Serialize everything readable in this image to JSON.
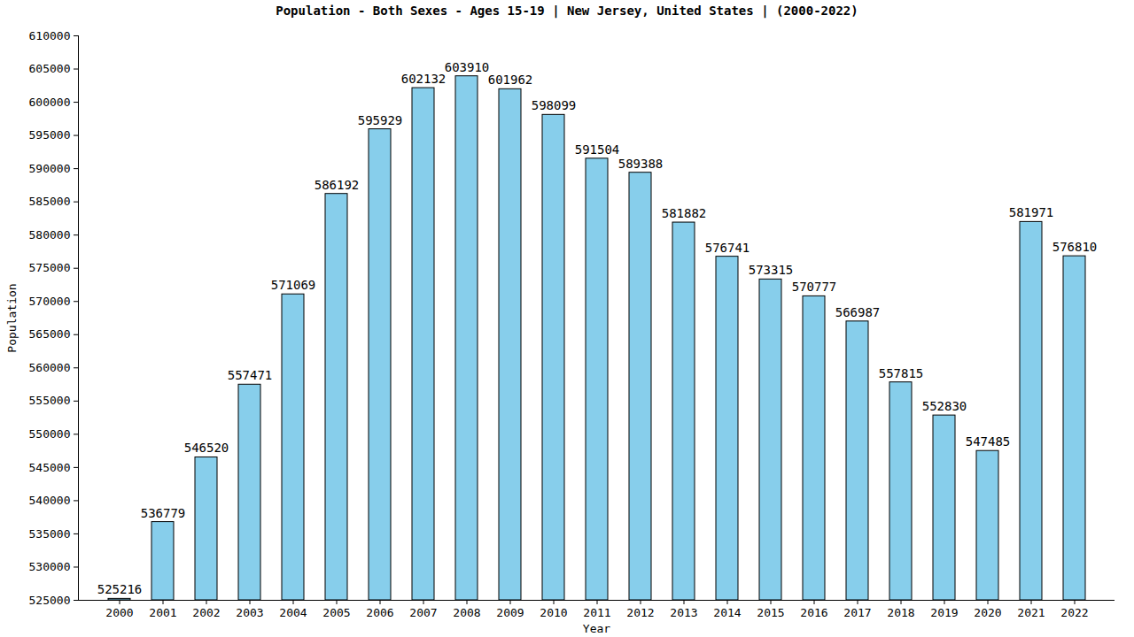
{
  "chart_data": {
    "type": "bar",
    "title": "Population - Both Sexes - Ages 15-19 | New Jersey, United States |  (2000-2022)",
    "x_label": "Year",
    "y_label": "Population",
    "categories": [
      "2000",
      "2001",
      "2002",
      "2003",
      "2004",
      "2005",
      "2006",
      "2007",
      "2008",
      "2009",
      "2010",
      "2011",
      "2012",
      "2013",
      "2014",
      "2015",
      "2016",
      "2017",
      "2018",
      "2019",
      "2020",
      "2021",
      "2022"
    ],
    "values": [
      525216,
      536779,
      546520,
      557471,
      571069,
      586192,
      595929,
      602132,
      603910,
      601962,
      598099,
      591504,
      589388,
      581882,
      576741,
      573315,
      570777,
      566987,
      557815,
      552830,
      547485,
      581971,
      576810
    ],
    "color": "#87ceeb",
    "ylim": [
      525000,
      610000
    ],
    "yticks": [
      525000,
      530000,
      535000,
      540000,
      545000,
      550000,
      555000,
      560000,
      565000,
      570000,
      575000,
      580000,
      585000,
      590000,
      595000,
      600000,
      605000,
      610000
    ],
    "grid": false,
    "data_labels": true
  }
}
